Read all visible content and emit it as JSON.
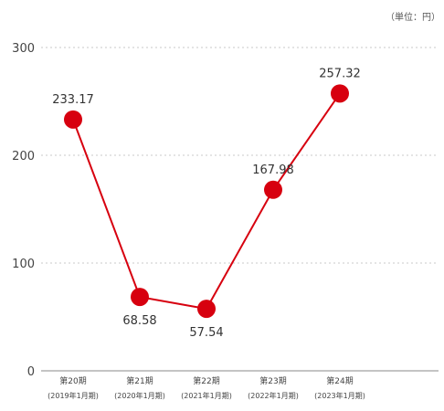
{
  "chart_data": {
    "type": "line",
    "unit": "（単位：円）",
    "categories": [
      {
        "main": "第20期",
        "sub": "(2019年1月期)"
      },
      {
        "main": "第21期",
        "sub": "(2020年1月期)"
      },
      {
        "main": "第22期",
        "sub": "(2021年1月期)"
      },
      {
        "main": "第23期",
        "sub": "(2022年1月期)"
      },
      {
        "main": "第24期",
        "sub": "(2023年1月期)"
      }
    ],
    "values": [
      233.17,
      68.58,
      57.54,
      167.98,
      257.32
    ],
    "value_labels": [
      "233.17",
      "68.58",
      "57.54",
      "167.98",
      "257.32"
    ],
    "ylim": [
      0,
      300
    ],
    "yticks": [
      0,
      100,
      200,
      300
    ],
    "grid": true,
    "colors": {
      "series": "#d7000f",
      "grid": "#c8c8c8",
      "axis": "#888888"
    }
  }
}
